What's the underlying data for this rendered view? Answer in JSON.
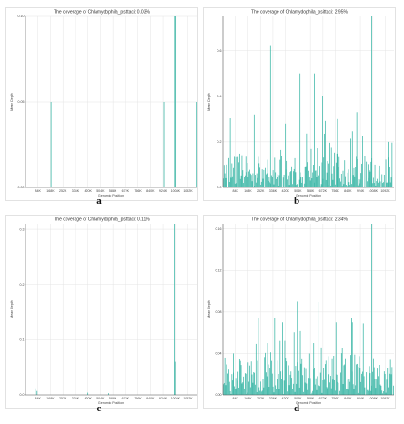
{
  "chart_data": [
    {
      "type": "bar",
      "panel": "a",
      "title": "The coverage of Chlamydophila_psittaci: 0.03%",
      "xlabel": "Genomic Position",
      "ylabel": "Mean Depth",
      "x_ticks": [
        "84K",
        "168K",
        "252K",
        "336K",
        "420K",
        "504K",
        "588K",
        "672K",
        "756K",
        "840K",
        "924K",
        "1008K",
        "1092K"
      ],
      "y_ticks": [
        "0.00",
        "0.05",
        "0.10"
      ],
      "xlim": [
        0,
        1150000
      ],
      "ylim": [
        0,
        0.1
      ],
      "grid": true,
      "color": "#3fb8a8",
      "bars": [
        {
          "x": 172000,
          "y": 0.05
        },
        {
          "x": 930000,
          "y": 0.05
        },
        {
          "x": 1002000,
          "y": 0.1
        },
        {
          "x": 1006000,
          "y": 0.1
        },
        {
          "x": 1148000,
          "y": 0.05
        }
      ]
    },
    {
      "type": "bar",
      "panel": "b",
      "title": "The coverage of Chlamydophila_psittaci: 2.95%",
      "xlabel": "Genomic Position",
      "ylabel": "Mean Depth",
      "x_ticks": [
        "84K",
        "168K",
        "252K",
        "336K",
        "420K",
        "504K",
        "588K",
        "672K",
        "756K",
        "840K",
        "924K",
        "1008K",
        "1092K"
      ],
      "y_ticks": [
        "0.0",
        "0.2",
        "0.4",
        "0.6"
      ],
      "xlim": [
        0,
        1150000
      ],
      "ylim": [
        0,
        0.75
      ],
      "grid": true,
      "color": "#3fb8a8",
      "bins": 220,
      "seed": 29,
      "base_max": 0.12,
      "peaks": [
        {
          "x": 320000,
          "y": 0.62
        },
        {
          "x": 518000,
          "y": 0.5
        },
        {
          "x": 615000,
          "y": 0.5
        },
        {
          "x": 670000,
          "y": 0.4
        },
        {
          "x": 1000000,
          "y": 0.75
        },
        {
          "x": 1110000,
          "y": 0.2
        },
        {
          "x": 210000,
          "y": 0.32
        },
        {
          "x": 770000,
          "y": 0.3
        },
        {
          "x": 900000,
          "y": 0.33
        },
        {
          "x": 420000,
          "y": 0.28
        }
      ]
    },
    {
      "type": "bar",
      "panel": "c",
      "title": "The coverage of Chlamydophila_psittaci: 0.11%",
      "xlabel": "Genomic Position",
      "ylabel": "Mean Depth",
      "x_ticks": [
        "84K",
        "168K",
        "252K",
        "336K",
        "420K",
        "504K",
        "588K",
        "672K",
        "756K",
        "840K",
        "924K",
        "1008K",
        "1092K"
      ],
      "y_ticks": [
        "0.0",
        "0.1",
        "0.2",
        "0.3"
      ],
      "xlim": [
        0,
        1150000
      ],
      "ylim": [
        0,
        0.31
      ],
      "grid": true,
      "color": "#3fb8a8",
      "bars": [
        {
          "x": 66000,
          "y": 0.012
        },
        {
          "x": 78000,
          "y": 0.007
        },
        {
          "x": 420000,
          "y": 0.004
        },
        {
          "x": 560000,
          "y": 0.003
        },
        {
          "x": 1000000,
          "y": 0.31
        },
        {
          "x": 1004000,
          "y": 0.06
        }
      ]
    },
    {
      "type": "bar",
      "panel": "d",
      "title": "The coverage of Chlamydophila_psittaci: 2.34%",
      "xlabel": "Genomic Position",
      "ylabel": "Mean Depth",
      "x_ticks": [
        "84K",
        "168K",
        "252K",
        "336K",
        "420K",
        "504K",
        "588K",
        "672K",
        "756K",
        "840K",
        "924K",
        "1008K",
        "1092K"
      ],
      "y_ticks": [
        "0.00",
        "0.04",
        "0.08",
        "0.12",
        "0.16"
      ],
      "xlim": [
        0,
        1150000
      ],
      "ylim": [
        0,
        0.165
      ],
      "grid": true,
      "color": "#3fb8a8",
      "bins": 220,
      "seed": 71,
      "base_max": 0.035,
      "peaks": [
        {
          "x": 500000,
          "y": 0.09
        },
        {
          "x": 400000,
          "y": 0.07
        },
        {
          "x": 760000,
          "y": 0.07
        },
        {
          "x": 870000,
          "y": 0.07
        },
        {
          "x": 1000000,
          "y": 0.165
        },
        {
          "x": 70000,
          "y": 0.04
        },
        {
          "x": 300000,
          "y": 0.05
        },
        {
          "x": 610000,
          "y": 0.05
        }
      ]
    }
  ]
}
